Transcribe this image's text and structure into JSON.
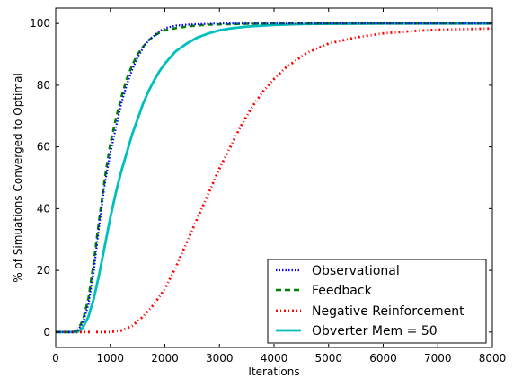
{
  "chart_data": {
    "type": "line",
    "title": "",
    "xlabel": "Iterations",
    "ylabel": "% of Simuations Converged to Optimal",
    "xlim": [
      0,
      8000
    ],
    "ylim": [
      -5,
      105
    ],
    "xticks": [
      0,
      1000,
      2000,
      3000,
      4000,
      5000,
      6000,
      7000,
      8000
    ],
    "yticks": [
      0,
      20,
      40,
      60,
      80,
      100
    ],
    "grid": false,
    "legend_position": "lower-right",
    "series": [
      {
        "name": "Observational",
        "color": "#0000ff",
        "style": "dotted",
        "x": [
          0,
          300,
          400,
          500,
          600,
          700,
          800,
          900,
          1000,
          1100,
          1200,
          1300,
          1400,
          1500,
          1600,
          1700,
          1800,
          1900,
          2000,
          2200,
          2400,
          2600,
          2800,
          3000,
          3500,
          4000,
          5000,
          6000,
          7000,
          8000
        ],
        "y": [
          0,
          0,
          0.5,
          3,
          9,
          20,
          35,
          48,
          58,
          66,
          74,
          80,
          85,
          89,
          92,
          94.5,
          96,
          97.5,
          98.5,
          99.3,
          99.6,
          99.8,
          99.9,
          100,
          100,
          100,
          100,
          100,
          100,
          100
        ]
      },
      {
        "name": "Feedback",
        "color": "#007f00",
        "style": "dashed",
        "x": [
          0,
          300,
          400,
          500,
          600,
          700,
          800,
          900,
          1000,
          1100,
          1200,
          1300,
          1400,
          1500,
          1600,
          1700,
          1800,
          1900,
          2000,
          2200,
          2400,
          2600,
          2800,
          3000,
          3500,
          4000,
          5000,
          6000,
          7000,
          8000
        ],
        "y": [
          0,
          0,
          0.5,
          4,
          11,
          23,
          37,
          50,
          61,
          69,
          76,
          82,
          86.5,
          90,
          92.5,
          94.5,
          96,
          97,
          97.8,
          98.5,
          99,
          99.4,
          99.6,
          99.7,
          99.9,
          100,
          100,
          100,
          100,
          100
        ]
      },
      {
        "name": "Negative Reinforcement",
        "color": "#ff0000",
        "style": "dashdot",
        "x": [
          0,
          500,
          1000,
          1200,
          1400,
          1600,
          1800,
          2000,
          2200,
          2400,
          2600,
          2800,
          3000,
          3200,
          3400,
          3600,
          3800,
          4000,
          4200,
          4400,
          4600,
          4800,
          5000,
          5500,
          6000,
          6500,
          7000,
          7500,
          8000
        ],
        "y": [
          0,
          0,
          0,
          0.5,
          2,
          5,
          9,
          14,
          21,
          29,
          37,
          45,
          53,
          60,
          67,
          73,
          78,
          82,
          85.5,
          88,
          90.5,
          92,
          93.5,
          95.5,
          96.8,
          97.5,
          98,
          98.2,
          98.4
        ]
      },
      {
        "name": "Obverter Mem = 50",
        "color": "#00bfbf",
        "style": "solid",
        "x": [
          0,
          400,
          500,
          600,
          700,
          800,
          900,
          1000,
          1100,
          1200,
          1300,
          1400,
          1500,
          1600,
          1700,
          1800,
          1900,
          2000,
          2200,
          2400,
          2600,
          2800,
          3000,
          3200,
          3500,
          4000,
          4500,
          5000,
          6000,
          7000,
          8000
        ],
        "y": [
          0,
          0,
          1.5,
          5,
          11,
          19,
          28,
          37,
          45,
          52,
          58,
          64,
          69,
          74,
          78,
          81.5,
          84.5,
          87,
          91,
          93.5,
          95.5,
          96.8,
          97.8,
          98.4,
          99,
          99.5,
          99.8,
          99.9,
          100,
          100,
          100
        ]
      }
    ]
  }
}
